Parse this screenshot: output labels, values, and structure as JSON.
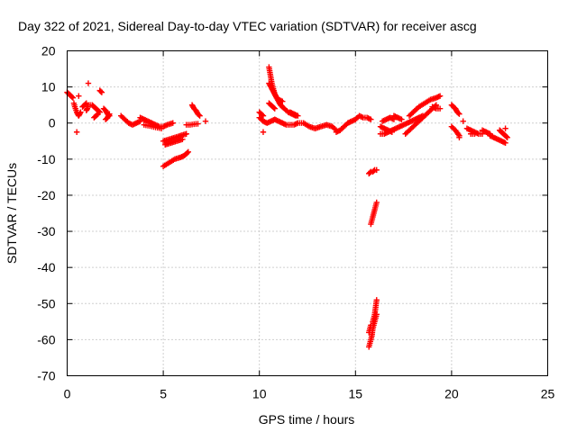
{
  "chart_data": {
    "type": "scatter",
    "title": "Day 322 of 2021, Sidereal Day-to-day VTEC variation (SDTVAR) for receiver ascg",
    "xlabel": "GPS time / hours",
    "ylabel": "SDTVAR / TECUs",
    "xlim": [
      0,
      25
    ],
    "ylim": [
      -70,
      20
    ],
    "xticks": [
      0,
      5,
      10,
      15,
      20,
      25
    ],
    "yticks": [
      20,
      10,
      0,
      -10,
      -20,
      -30,
      -40,
      -50,
      -60,
      -70
    ],
    "grid": true,
    "marker": "+",
    "color": "#ff0000",
    "series": [
      {
        "name": "SDTVAR",
        "segments": [
          {
            "x": [
              0.0,
              0.1,
              0.2,
              0.3
            ],
            "y": [
              8.5,
              8.0,
              7.5,
              7.0
            ]
          },
          {
            "x": [
              0.35,
              0.4,
              0.5,
              0.6,
              0.7
            ],
            "y": [
              5.5,
              4.5,
              3.0,
              2.0,
              3.0
            ]
          },
          {
            "x": [
              0.5
            ],
            "y": [
              -2.5
            ]
          },
          {
            "x": [
              0.6
            ],
            "y": [
              7.5
            ]
          },
          {
            "x": [
              0.8,
              0.9,
              1.0
            ],
            "y": [
              4.5,
              5.0,
              5.5
            ]
          },
          {
            "x": [
              1.0,
              1.05,
              1.1
            ],
            "y": [
              3.5,
              4.0,
              5.0
            ]
          },
          {
            "x": [
              1.1
            ],
            "y": [
              11.0
            ]
          },
          {
            "x": [
              1.2
            ],
            "y": [
              5.0
            ]
          },
          {
            "x": [
              1.3,
              1.4,
              1.5,
              1.6,
              1.7
            ],
            "y": [
              5.0,
              4.5,
              4.0,
              3.5,
              3.0
            ]
          },
          {
            "x": [
              1.4,
              1.5,
              1.6
            ],
            "y": [
              1.5,
              2.0,
              2.5
            ]
          },
          {
            "x": [
              1.7,
              1.8
            ],
            "y": [
              9.0,
              8.5
            ]
          },
          {
            "x": [
              1.9,
              2.0,
              2.1,
              2.2
            ],
            "y": [
              4.0,
              3.5,
              2.5,
              2.0
            ]
          },
          {
            "x": [
              2.0,
              2.1,
              2.2
            ],
            "y": [
              1.0,
              1.5,
              2.5
            ]
          },
          {
            "x": [
              2.8,
              3.0,
              3.2,
              3.4,
              3.6,
              3.8
            ],
            "y": [
              2.0,
              1.0,
              0.0,
              -0.5,
              0.0,
              0.5
            ]
          },
          {
            "x": [
              3.8,
              4.0,
              4.2,
              4.4,
              4.6,
              4.8,
              5.0,
              5.2,
              5.5
            ],
            "y": [
              1.5,
              1.0,
              0.5,
              0.0,
              -0.5,
              -1.0,
              -1.0,
              -0.5,
              0.0
            ]
          },
          {
            "x": [
              4.0,
              4.3,
              4.6,
              4.9
            ],
            "y": [
              -0.5,
              -0.8,
              -1.2,
              -1.5
            ]
          },
          {
            "x": [
              5.0,
              5.3,
              5.6,
              5.9,
              6.2
            ],
            "y": [
              -5.0,
              -4.5,
              -4.0,
              -3.5,
              -3.0
            ]
          },
          {
            "x": [
              5.1,
              5.4,
              5.7,
              6.0
            ],
            "y": [
              -6.0,
              -5.5,
              -5.0,
              -4.5
            ]
          },
          {
            "x": [
              5.0,
              5.3,
              5.6,
              5.9,
              6.1,
              6.2,
              6.3
            ],
            "y": [
              -12.0,
              -11.0,
              -10.0,
              -9.5,
              -9.0,
              -8.5,
              -8.0
            ]
          },
          {
            "x": [
              6.2,
              6.4,
              6.6,
              6.8
            ],
            "y": [
              -0.5,
              -0.5,
              -0.3,
              -0.2
            ]
          },
          {
            "x": [
              6.5,
              6.6,
              6.7,
              6.8,
              6.9
            ],
            "y": [
              5.0,
              4.0,
              3.5,
              2.5,
              2.0
            ]
          },
          {
            "x": [
              7.2
            ],
            "y": [
              0.5
            ]
          },
          {
            "x": [
              10.0,
              10.2,
              10.4,
              10.6,
              10.8,
              11.0,
              11.2,
              11.4,
              11.6,
              11.8,
              12.0,
              12.3,
              12.6,
              12.9,
              13.2,
              13.5,
              13.8,
              14.0
            ],
            "y": [
              1.5,
              0.5,
              0.0,
              0.5,
              1.0,
              0.5,
              0.0,
              -0.5,
              -0.5,
              -0.5,
              0.0,
              0.0,
              -1.0,
              -1.5,
              -1.0,
              -0.5,
              -1.0,
              -2.0
            ]
          },
          {
            "x": [
              10.0,
              10.1,
              10.2
            ],
            "y": [
              3.0,
              2.5,
              2.0
            ]
          },
          {
            "x": [
              10.2
            ],
            "y": [
              -2.5
            ]
          },
          {
            "x": [
              10.5,
              10.55,
              10.6,
              10.65,
              10.7,
              10.75,
              10.8,
              10.9,
              11.0,
              11.1,
              11.2,
              11.3,
              11.5,
              11.7,
              11.9
            ],
            "y": [
              15.5,
              14.0,
              12.5,
              11.0,
              10.0,
              9.0,
              8.0,
              7.0,
              6.0,
              5.0,
              4.5,
              4.0,
              3.0,
              2.5,
              2.0
            ]
          },
          {
            "x": [
              10.5,
              10.6,
              10.7,
              10.8,
              10.9,
              11.0,
              11.2
            ],
            "y": [
              11.0,
              10.0,
              9.0,
              8.0,
              7.0,
              6.5,
              6.0
            ]
          },
          {
            "x": [
              10.5,
              10.6,
              10.7,
              10.8
            ],
            "y": [
              5.5,
              5.0,
              4.5,
              4.0
            ]
          },
          {
            "x": [
              11.6,
              11.8,
              12.0
            ],
            "y": [
              3.0,
              2.5,
              2.0
            ]
          },
          {
            "x": [
              14.0,
              14.2,
              14.4,
              14.6,
              14.8,
              15.0,
              15.2,
              15.4,
              15.6,
              15.8
            ],
            "y": [
              -2.5,
              -2.0,
              -1.0,
              0.0,
              0.5,
              1.0,
              2.0,
              1.5,
              1.5,
              1.0
            ]
          },
          {
            "x": [
              15.7,
              15.8,
              15.9,
              16.0,
              16.1
            ],
            "y": [
              -14.0,
              -13.5,
              -13.5,
              -13.0,
              -13.0
            ]
          },
          {
            "x": [
              15.8,
              15.85,
              15.9,
              15.95,
              16.0,
              16.05,
              16.1
            ],
            "y": [
              -28.0,
              -27.0,
              -26.0,
              -25.0,
              -24.0,
              -23.0,
              -22.0
            ]
          },
          {
            "x": [
              15.9,
              16.0,
              16.05,
              16.1
            ],
            "y": [
              -55.0,
              -53.0,
              -51.0,
              -49.0
            ]
          },
          {
            "x": [
              15.7,
              15.75,
              15.8,
              15.85,
              15.9,
              15.95,
              16.0,
              16.05,
              16.1
            ],
            "y": [
              -62.0,
              -61.0,
              -60.0,
              -59.0,
              -57.0,
              -56.0,
              -55.0,
              -54.0,
              -53.0
            ]
          },
          {
            "x": [
              15.7,
              15.75,
              15.8
            ],
            "y": [
              -58.0,
              -57.0,
              -56.0
            ]
          },
          {
            "x": [
              16.3,
              16.5,
              16.7,
              16.9,
              17.1,
              17.3,
              17.5,
              17.7,
              17.9,
              18.1,
              18.3,
              18.5
            ],
            "y": [
              -3.0,
              -3.0,
              -2.5,
              -2.0,
              -1.5,
              -1.0,
              -0.5,
              0.0,
              0.5,
              1.0,
              1.5,
              2.0
            ]
          },
          {
            "x": [
              16.3,
              16.5,
              16.7,
              16.9
            ],
            "y": [
              -1.0,
              -1.5,
              -2.0,
              -2.5
            ]
          },
          {
            "x": [
              16.4,
              16.6,
              16.8,
              17.0
            ],
            "y": [
              0.5,
              1.0,
              1.5,
              1.0
            ]
          },
          {
            "x": [
              17.0,
              17.2,
              17.4
            ],
            "y": [
              2.0,
              1.5,
              1.0
            ]
          },
          {
            "x": [
              17.6,
              17.8,
              18.0,
              18.2,
              18.4,
              18.6,
              18.8,
              19.0,
              19.2
            ],
            "y": [
              -3.0,
              -2.0,
              -1.0,
              0.0,
              1.0,
              2.0,
              3.0,
              4.0,
              5.0
            ]
          },
          {
            "x": [
              17.8,
              18.0,
              18.3,
              18.6,
              18.9,
              19.2,
              19.4
            ],
            "y": [
              2.0,
              3.0,
              4.5,
              5.5,
              6.5,
              7.0,
              7.5
            ]
          },
          {
            "x": [
              19.0,
              19.2,
              19.4
            ],
            "y": [
              4.5,
              4.0,
              4.0
            ]
          },
          {
            "x": [
              20.0,
              20.1,
              20.2,
              20.3,
              20.4
            ],
            "y": [
              5.0,
              4.5,
              4.0,
              3.0,
              2.5
            ]
          },
          {
            "x": [
              20.0,
              20.2,
              20.4
            ],
            "y": [
              -1.0,
              -2.0,
              -3.5
            ]
          },
          {
            "x": [
              20.4
            ],
            "y": [
              -4.0
            ]
          },
          {
            "x": [
              20.6
            ],
            "y": [
              0.5
            ]
          },
          {
            "x": [
              20.8,
              21.0,
              21.2,
              21.4,
              21.6
            ],
            "y": [
              -1.5,
              -2.0,
              -2.5,
              -3.0,
              -3.0
            ]
          },
          {
            "x": [
              21.0,
              21.2
            ],
            "y": [
              -3.0,
              -3.0
            ]
          },
          {
            "x": [
              21.6,
              21.8,
              22.0
            ],
            "y": [
              -2.0,
              -2.5,
              -3.0
            ]
          },
          {
            "x": [
              22.0,
              22.2,
              22.4,
              22.6,
              22.8
            ],
            "y": [
              -3.5,
              -4.0,
              -4.5,
              -5.0,
              -5.5
            ]
          },
          {
            "x": [
              22.5,
              22.6,
              22.7,
              22.8,
              22.9
            ],
            "y": [
              -2.0,
              -2.5,
              -3.0,
              -3.5,
              -4.0
            ]
          },
          {
            "x": [
              22.8
            ],
            "y": [
              -1.5
            ]
          }
        ]
      }
    ]
  }
}
